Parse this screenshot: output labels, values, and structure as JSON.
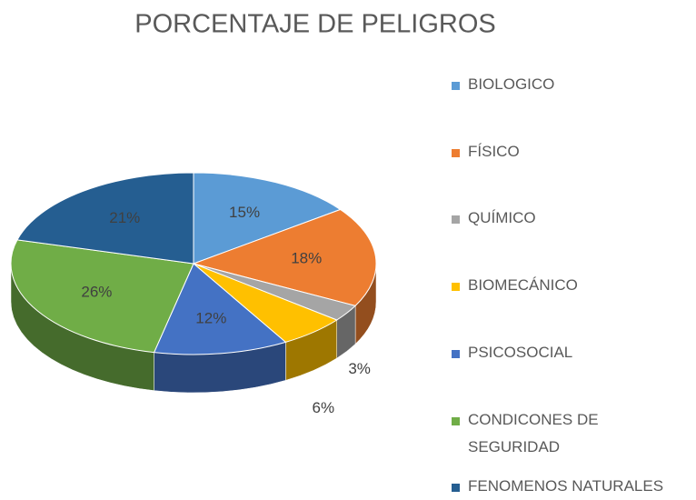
{
  "chart_data": {
    "type": "pie",
    "title": "PORCENTAJE DE PELIGROS",
    "categories": [
      "BIOLOGICO",
      "FÍSICO",
      "QUÍMICO",
      "BIOMECÁNICO",
      "PSICOSOCIAL",
      "CONDICONES DE SEGURIDAD",
      "FENOMENOS NATURALES"
    ],
    "values": [
      15,
      18,
      3,
      6,
      12,
      26,
      21
    ],
    "value_labels": [
      "15%",
      "18%",
      "3%",
      "6%",
      "12%",
      "26%",
      "21%"
    ],
    "colors": [
      "#5b9bd5",
      "#ed7d31",
      "#a5a5a5",
      "#ffc000",
      "#4472c4",
      "#70ad47",
      "#255e91"
    ],
    "legend": "right"
  }
}
